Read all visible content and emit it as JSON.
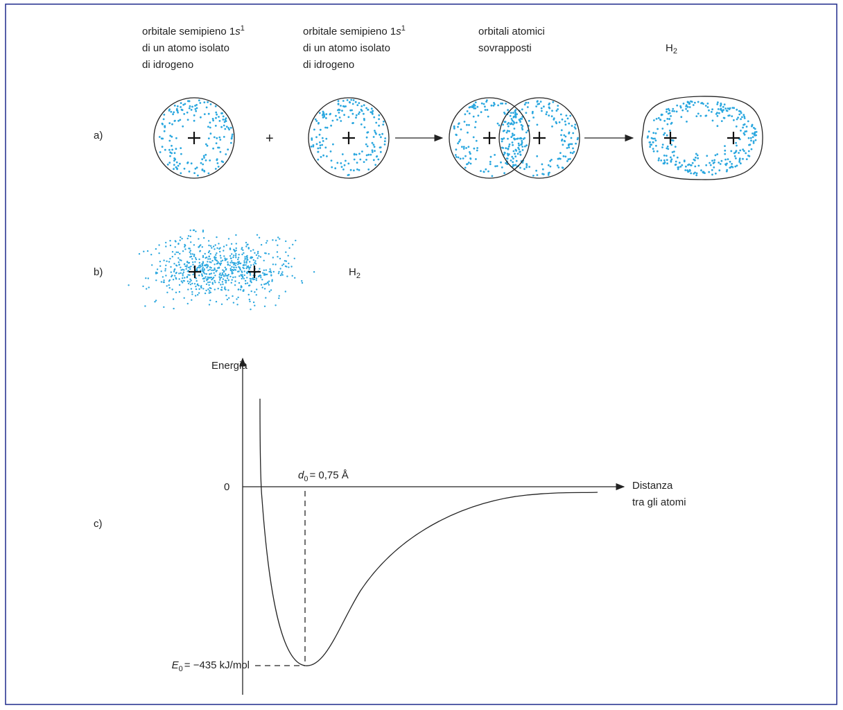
{
  "panel_a": {
    "label": "a)",
    "captions": [
      {
        "first_line": {
          "text": "orbitale semipieno 1",
          "italic": "s",
          "superscript": "1"
        },
        "lines": [
          "di un atomo isolato",
          "di idrogeno"
        ]
      },
      {
        "first_line": {
          "text": "orbitale semipieno 1",
          "italic": "s",
          "superscript": "1"
        },
        "lines": [
          "di un atomo isolato",
          "di idrogeno"
        ]
      },
      {
        "lines": [
          "orbitali atomici",
          "sovrapposti"
        ]
      },
      {
        "symbol": "H",
        "subscript": "2"
      }
    ],
    "operator": "+"
  },
  "panel_b": {
    "label": "b)",
    "molecule": {
      "symbol": "H",
      "subscript": "2"
    }
  },
  "panel_c": {
    "label": "c)",
    "y_label": "Energia",
    "zero": "0",
    "x_label": [
      "Distanza",
      "tra gli atomi"
    ],
    "bond_length": {
      "symbol": "d",
      "subscript": "0",
      "text": "= 0,75 Å"
    },
    "bond_energy": {
      "symbol": "E",
      "subscript": "0",
      "text": "= −435 kJ/mol"
    }
  }
}
